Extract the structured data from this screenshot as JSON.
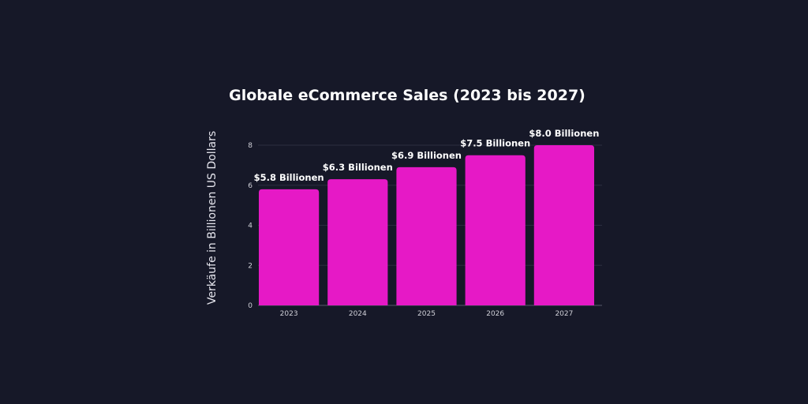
{
  "chart_data": {
    "type": "bar",
    "title": "Globale eCommerce Sales (2023 bis 2027)",
    "xlabel": "",
    "ylabel": "Verkäufe in Billionen US Dollars",
    "categories": [
      "2023",
      "2024",
      "2025",
      "2026",
      "2027"
    ],
    "values": [
      5.8,
      6.3,
      6.9,
      7.5,
      8.0
    ],
    "data_labels": [
      "$5.8 Billionen",
      "$6.3 Billionen",
      "$6.9 Billionen",
      "$7.5 Billionen",
      "$8.0 Billionen"
    ],
    "yticks": [
      0,
      2,
      4,
      6,
      8
    ],
    "ylim": [
      0,
      8
    ],
    "grid": true,
    "colors": {
      "bar": "#e619c6",
      "background": "#161828",
      "grid": "#2c2e40"
    }
  }
}
